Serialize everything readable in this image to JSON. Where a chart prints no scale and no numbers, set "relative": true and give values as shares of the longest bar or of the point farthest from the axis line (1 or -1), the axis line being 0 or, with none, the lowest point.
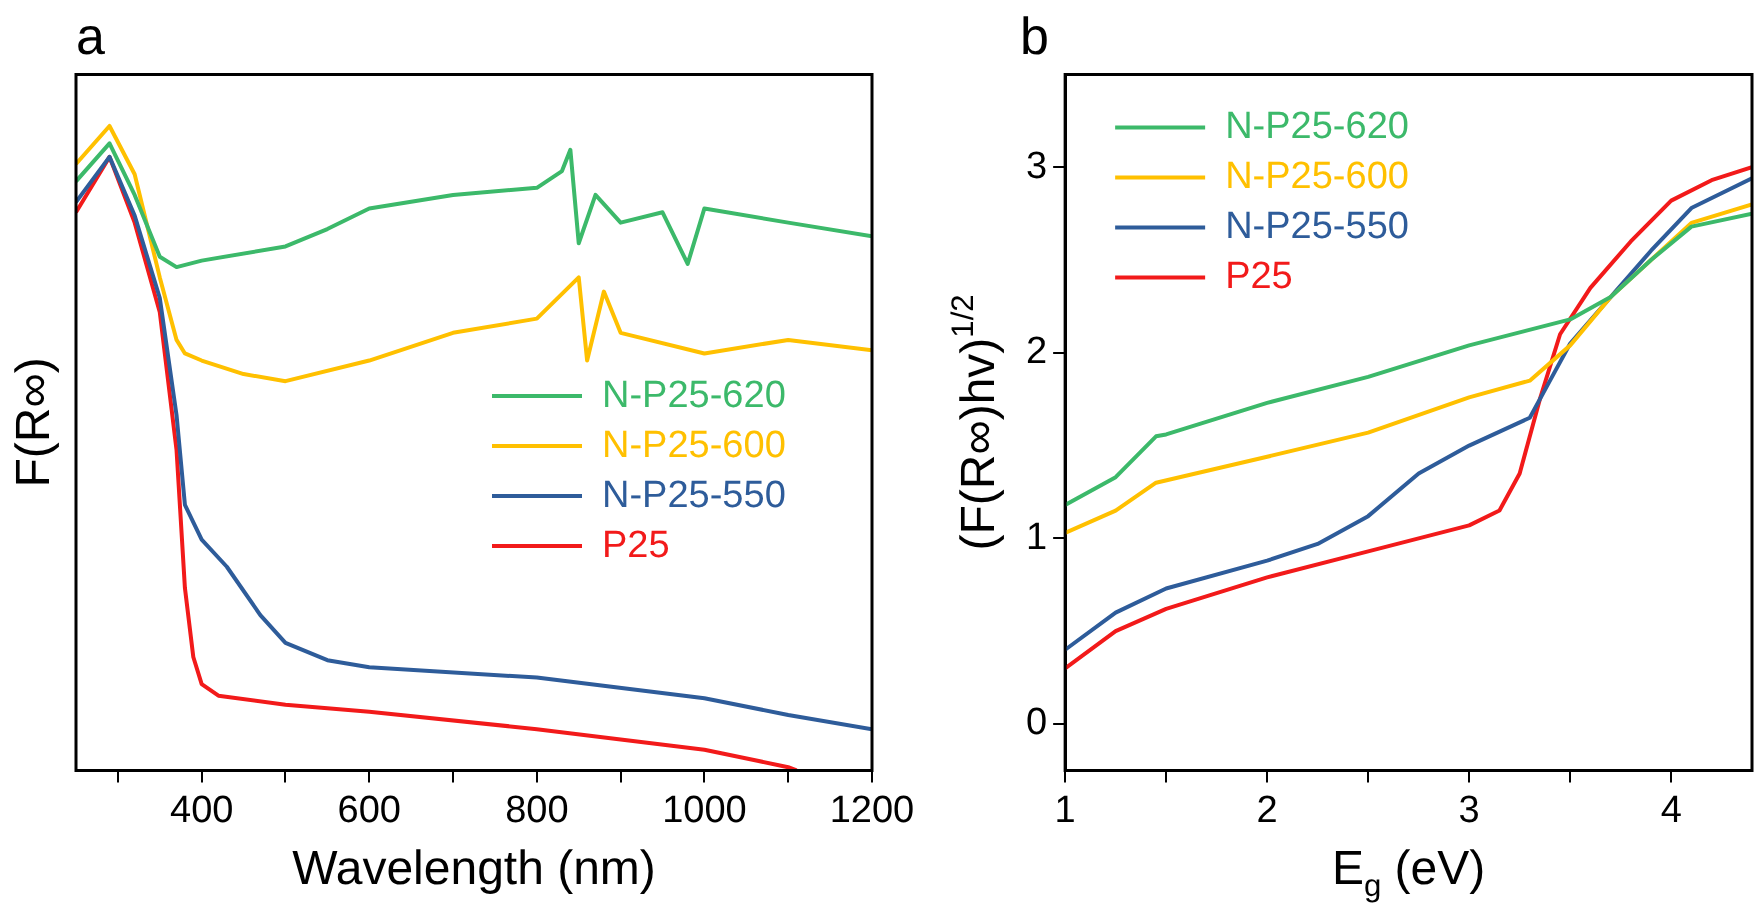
{
  "chart_data": [
    {
      "type": "line",
      "title": "a",
      "xlabel": "Wavelength (nm)",
      "ylabel": "F(R∞)",
      "relative": true,
      "tick_labels": "x",
      "legend": "right",
      "xlim": [
        250,
        1200
      ],
      "xticks": [
        {
          "value": 300,
          "label": null
        },
        400,
        {
          "value": 500,
          "label": null
        },
        600,
        {
          "value": 700,
          "label": null
        },
        800,
        {
          "value": 900,
          "label": null
        },
        1000,
        {
          "value": 1100,
          "label": null
        },
        1200
      ],
      "series": [
        {
          "name": "N-P25-620",
          "color": "#3cb96a",
          "x": [
            250,
            290,
            320,
            350,
            370,
            400,
            500,
            550,
            600,
            700,
            800,
            830,
            840,
            850,
            870,
            900,
            950,
            980,
            1000,
            1100,
            1200
          ],
          "values": [
            0.914,
            0.973,
            0.893,
            0.797,
            0.781,
            0.791,
            0.813,
            0.84,
            0.872,
            0.893,
            0.904,
            0.93,
            0.963,
            0.818,
            0.893,
            0.85,
            0.866,
            0.786,
            0.872,
            0.85,
            0.829
          ]
        },
        {
          "name": "N-P25-600",
          "color": "#ffc000",
          "x": [
            250,
            290,
            320,
            350,
            370,
            380,
            400,
            450,
            500,
            600,
            700,
            800,
            850,
            860,
            880,
            900,
            1000,
            1100,
            1200
          ],
          "values": [
            0.941,
            1,
            0.925,
            0.765,
            0.668,
            0.647,
            0.636,
            0.615,
            0.604,
            0.636,
            0.679,
            0.701,
            0.765,
            0.636,
            0.743,
            0.679,
            0.647,
            0.668,
            0.652
          ]
        },
        {
          "name": "N-P25-550",
          "color": "#2e5c9a",
          "x": [
            250,
            290,
            320,
            350,
            370,
            380,
            400,
            430,
            470,
            500,
            550,
            600,
            800,
            1000,
            1100,
            1200
          ],
          "values": [
            0.882,
            0.952,
            0.861,
            0.733,
            0.551,
            0.412,
            0.358,
            0.316,
            0.241,
            0.198,
            0.171,
            0.16,
            0.144,
            0.112,
            0.086,
            0.064
          ]
        },
        {
          "name": "P25",
          "color": "#f21a1a",
          "x": [
            250,
            290,
            320,
            350,
            370,
            380,
            390,
            400,
            420,
            500,
            600,
            800,
            1000,
            1100,
            1110
          ],
          "values": [
            0.866,
            0.952,
            0.85,
            0.711,
            0.497,
            0.283,
            0.176,
            0.134,
            0.116,
            0.102,
            0.091,
            0.064,
            0.032,
            0.005,
            0
          ]
        }
      ]
    },
    {
      "type": "line",
      "title": "b",
      "xlabel": "E$_{g}$ (eV)",
      "ylabel": "(F(R∞)hv)$^{1/2}$",
      "legend": "top left",
      "xlim": [
        1,
        4.4
      ],
      "ylim": [
        -0.25,
        3.5
      ],
      "xticks": [
        1,
        {
          "value": 1.5,
          "label": null
        },
        2,
        {
          "value": 2.5,
          "label": null
        },
        3,
        {
          "value": 3.5,
          "label": null
        },
        4
      ],
      "yticks": [
        0,
        1,
        2,
        3
      ],
      "series": [
        {
          "name": "N-P25-620",
          "color": "#3cb96a",
          "x": [
            1,
            1.25,
            1.45,
            1.5,
            2,
            2.5,
            3,
            3.5,
            3.7,
            3.9,
            4.1,
            4.4
          ],
          "values": [
            1.18,
            1.33,
            1.55,
            1.56,
            1.73,
            1.87,
            2.04,
            2.18,
            2.3,
            2.5,
            2.68,
            2.75
          ]
        },
        {
          "name": "N-P25-600",
          "color": "#ffc000",
          "x": [
            1,
            1.25,
            1.45,
            2,
            2.5,
            3,
            3.3,
            3.5,
            3.7,
            3.9,
            4.1,
            4.4
          ],
          "values": [
            1.03,
            1.15,
            1.3,
            1.44,
            1.57,
            1.76,
            1.85,
            2.04,
            2.3,
            2.5,
            2.7,
            2.8
          ]
        },
        {
          "name": "N-P25-550",
          "color": "#2e5c9a",
          "x": [
            1,
            1.25,
            1.5,
            2,
            2.25,
            2.5,
            2.75,
            3,
            3.3,
            3.4,
            3.5,
            3.7,
            3.9,
            4.1,
            4.4
          ],
          "values": [
            0.4,
            0.6,
            0.73,
            0.88,
            0.97,
            1.12,
            1.35,
            1.5,
            1.65,
            1.85,
            2.05,
            2.3,
            2.55,
            2.78,
            2.94
          ]
        },
        {
          "name": "P25",
          "color": "#f21a1a",
          "x": [
            1,
            1.25,
            1.5,
            2,
            2.5,
            3,
            3.15,
            3.25,
            3.35,
            3.45,
            3.6,
            3.8,
            4,
            4.2,
            4.4
          ],
          "values": [
            0.3,
            0.5,
            0.62,
            0.79,
            0.93,
            1.07,
            1.15,
            1.35,
            1.75,
            2.1,
            2.35,
            2.6,
            2.82,
            2.93,
            3.0
          ]
        }
      ]
    }
  ]
}
